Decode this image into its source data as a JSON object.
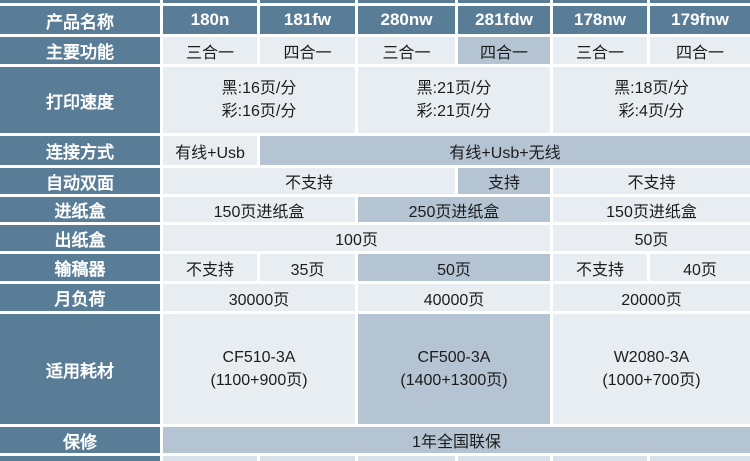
{
  "colors": {
    "header_dark": "#5a7d97",
    "cell_light": "#e8edf1",
    "cell_highlight": "#b5c4d3",
    "divider": "#ffffff",
    "text_dark": "#1c1c1c",
    "text_light": "#ffffff"
  },
  "rows": [
    {
      "label": "产品名称",
      "cells": [
        {
          "t": "180n"
        },
        {
          "t": "181fw"
        },
        {
          "t": "280nw"
        },
        {
          "t": "281fdw"
        },
        {
          "t": "178nw"
        },
        {
          "t": "179fnw"
        }
      ]
    },
    {
      "label": "主要功能",
      "cells": [
        {
          "t": "三合一"
        },
        {
          "t": "四合一"
        },
        {
          "t": "三合一"
        },
        {
          "t": "四合一"
        },
        {
          "t": "三合一"
        },
        {
          "t": "四合一"
        }
      ]
    },
    {
      "label": "打印速度",
      "cells": [
        {
          "t": "黑:16页/分\n彩:16页/分"
        },
        {
          "t": "黑:21页/分\n彩:21页/分"
        },
        {
          "t": "黑:18页/分\n彩:4页/分"
        }
      ]
    },
    {
      "label": "连接方式",
      "cells": [
        {
          "t": "有线+Usb"
        },
        {
          "t": "有线+Usb+无线"
        }
      ]
    },
    {
      "label": "自动双面",
      "cells": [
        {
          "t": "不支持"
        },
        {
          "t": "支持"
        },
        {
          "t": "不支持"
        }
      ]
    },
    {
      "label": "进纸盒",
      "cells": [
        {
          "t": "150页进纸盒"
        },
        {
          "t": "250页进纸盒"
        },
        {
          "t": "150页进纸盒"
        }
      ]
    },
    {
      "label": "出纸盒",
      "cells": [
        {
          "t": "100页"
        },
        {
          "t": "50页"
        }
      ]
    },
    {
      "label": "输稿器",
      "cells": [
        {
          "t": "不支持"
        },
        {
          "t": "35页"
        },
        {
          "t": "50页"
        },
        {
          "t": "不支持"
        },
        {
          "t": "40页"
        }
      ]
    },
    {
      "label": "月负荷",
      "cells": [
        {
          "t": "30000页"
        },
        {
          "t": "40000页"
        },
        {
          "t": "20000页"
        }
      ]
    },
    {
      "label": "适用耗材",
      "cells": [
        {
          "t": "CF510-3A\n(1100+900页)"
        },
        {
          "t": "CF500-3A\n(1400+1300页)"
        },
        {
          "t": "W2080-3A\n(1000+700页)"
        }
      ]
    },
    {
      "label": "保修",
      "cells": [
        {
          "t": "1年全国联保"
        }
      ]
    }
  ]
}
